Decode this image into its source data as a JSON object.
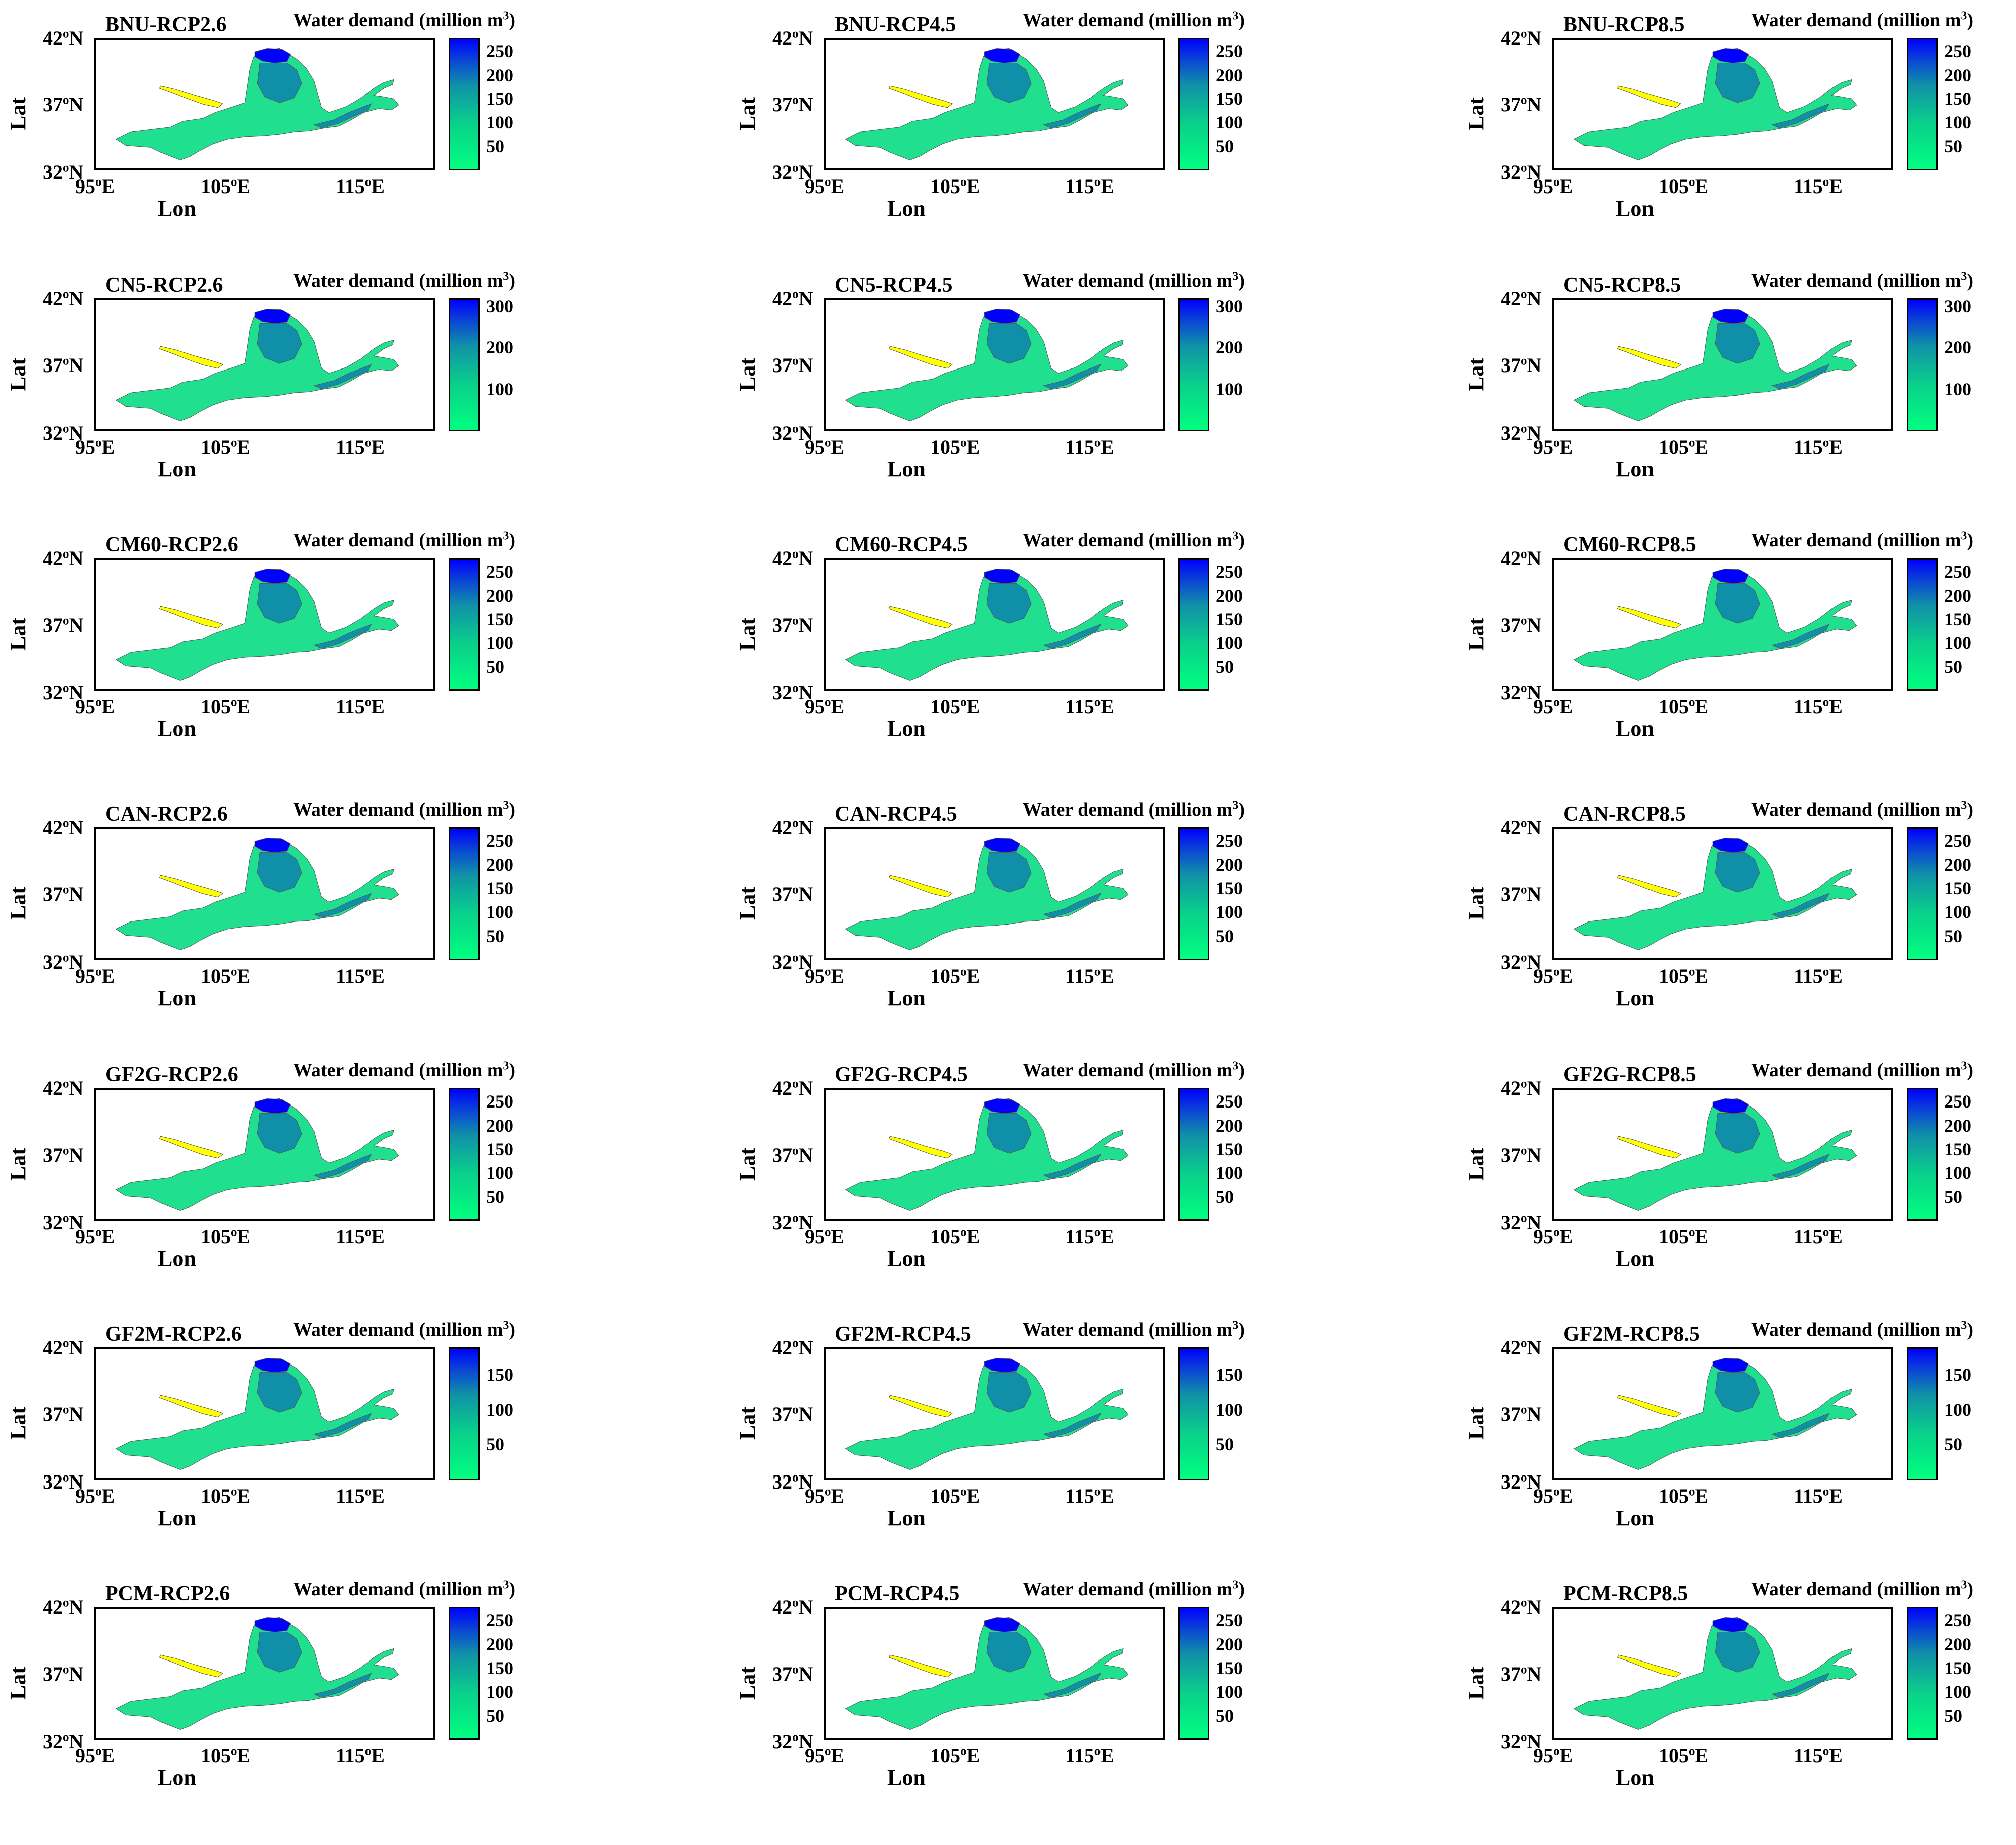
{
  "colors": {
    "low": "#00ff80",
    "mid": "#1090a8",
    "high": "#0000ff",
    "desert": "#ffff00",
    "basin": "#20e090",
    "outline": "#555555"
  },
  "axes": {
    "lat_title": "Lat",
    "lon_title": "Lon",
    "lat_ticks": [
      {
        "num": "42",
        "sup": "o",
        "dir": "N"
      },
      {
        "num": "37",
        "sup": "o",
        "dir": "N"
      },
      {
        "num": "32",
        "sup": "o",
        "dir": "N"
      }
    ],
    "lon_ticks": [
      {
        "num": "95",
        "sup": "o",
        "dir": "E"
      },
      {
        "num": "105",
        "sup": "o",
        "dir": "E"
      },
      {
        "num": "115",
        "sup": "o",
        "dir": "E"
      }
    ]
  },
  "colorbar_title": {
    "text": "Water demand (million m",
    "sup": "3",
    "close": ")"
  },
  "panels": [
    {
      "title": "BNU-RCP2.6",
      "ticks": [
        "250",
        "200",
        "150",
        "100",
        "50"
      ],
      "max": 280
    },
    {
      "title": "BNU-RCP4.5",
      "ticks": [
        "250",
        "200",
        "150",
        "100",
        "50"
      ],
      "max": 280
    },
    {
      "title": "BNU-RCP8.5",
      "ticks": [
        "250",
        "200",
        "150",
        "100",
        "50"
      ],
      "max": 280
    },
    {
      "title": "CN5-RCP2.6",
      "ticks": [
        "300",
        "200",
        "100"
      ],
      "max": 320
    },
    {
      "title": "CN5-RCP4.5",
      "ticks": [
        "300",
        "200",
        "100"
      ],
      "max": 320
    },
    {
      "title": "CN5-RCP8.5",
      "ticks": [
        "300",
        "200",
        "100"
      ],
      "max": 320
    },
    {
      "title": "CM60-RCP2.6",
      "ticks": [
        "250",
        "200",
        "150",
        "100",
        "50"
      ],
      "max": 280
    },
    {
      "title": "CM60-RCP4.5",
      "ticks": [
        "250",
        "200",
        "150",
        "100",
        "50"
      ],
      "max": 280
    },
    {
      "title": "CM60-RCP8.5",
      "ticks": [
        "250",
        "200",
        "150",
        "100",
        "50"
      ],
      "max": 280
    },
    {
      "title": "CAN-RCP2.6",
      "ticks": [
        "250",
        "200",
        "150",
        "100",
        "50"
      ],
      "max": 280
    },
    {
      "title": "CAN-RCP4.5",
      "ticks": [
        "250",
        "200",
        "150",
        "100",
        "50"
      ],
      "max": 280
    },
    {
      "title": "CAN-RCP8.5",
      "ticks": [
        "250",
        "200",
        "150",
        "100",
        "50"
      ],
      "max": 280
    },
    {
      "title": "GF2G-RCP2.6",
      "ticks": [
        "250",
        "200",
        "150",
        "100",
        "50"
      ],
      "max": 280
    },
    {
      "title": "GF2G-RCP4.5",
      "ticks": [
        "250",
        "200",
        "150",
        "100",
        "50"
      ],
      "max": 280
    },
    {
      "title": "GF2G-RCP8.5",
      "ticks": [
        "250",
        "200",
        "150",
        "100",
        "50"
      ],
      "max": 280
    },
    {
      "title": "GF2M-RCP2.6",
      "ticks": [
        "150",
        "100",
        "50"
      ],
      "max": 190
    },
    {
      "title": "GF2M-RCP4.5",
      "ticks": [
        "150",
        "100",
        "50"
      ],
      "max": 190
    },
    {
      "title": "GF2M-RCP8.5",
      "ticks": [
        "150",
        "100",
        "50"
      ],
      "max": 190
    },
    {
      "title": "PCM-RCP2.6",
      "ticks": [
        "250",
        "200",
        "150",
        "100",
        "50"
      ],
      "max": 280
    },
    {
      "title": "PCM-RCP4.5",
      "ticks": [
        "250",
        "200",
        "150",
        "100",
        "50"
      ],
      "max": 280
    },
    {
      "title": "PCM-RCP8.5",
      "ticks": [
        "250",
        "200",
        "150",
        "100",
        "50"
      ],
      "max": 280
    }
  ]
}
